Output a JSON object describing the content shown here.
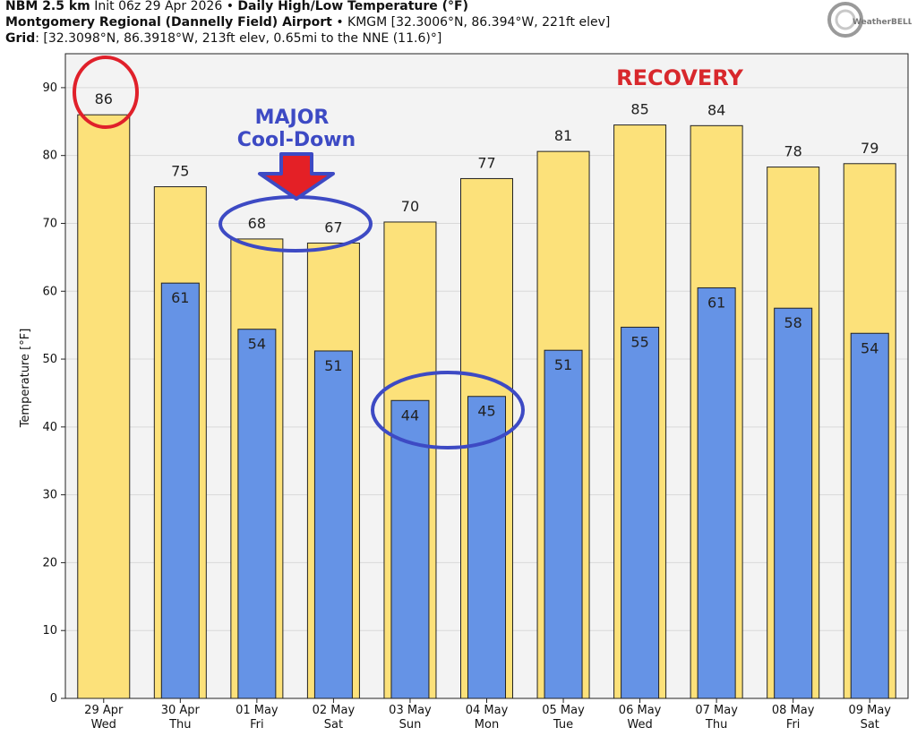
{
  "header": {
    "model": "NBM 2.5 km",
    "init": "Init 06z 29 Apr 2026",
    "bullet": "•",
    "product": "Daily High/Low Temperature (°F)",
    "station": "Montgomery Regional (Dannelly Field) Airport",
    "station_info": "KMGM [32.3006°N, 86.394°W, 221ft elev]",
    "grid_label": "Grid",
    "grid_info": ": [32.3098°N, 86.3918°W, 213ft elev, 0.65mi to the NNE (11.6)°]"
  },
  "logo": {
    "text": "WeatherBELL",
    "icon": "weatherbell-globe-logo"
  },
  "annotations": {
    "major": "MAJOR",
    "cooldown": "Cool-Down",
    "recovery": "RECOVERY",
    "arrow_icon": "red-down-arrow-icon",
    "circle_icon": "highlight-circle-icon"
  },
  "colors": {
    "high_bar": "#FCE17A",
    "low_bar": "#6593E6",
    "plot_bg": "#F3F3F3",
    "recovery_red": "#D8282C",
    "annotation_blue": "#3D4AC4",
    "circle_red": "#E0202A"
  },
  "chart_data": {
    "type": "bar",
    "title": "Daily High/Low Temperature (°F)",
    "ylabel": "Temperature [°F]",
    "xlabel": "",
    "ylim": [
      0,
      95
    ],
    "yticks": [
      0,
      10,
      20,
      30,
      40,
      50,
      60,
      70,
      80,
      90
    ],
    "grid": true,
    "categories": [
      [
        "29 Apr",
        "Wed"
      ],
      [
        "30 Apr",
        "Thu"
      ],
      [
        "01 May",
        "Fri"
      ],
      [
        "02 May",
        "Sat"
      ],
      [
        "03 May",
        "Sun"
      ],
      [
        "04 May",
        "Mon"
      ],
      [
        "05 May",
        "Tue"
      ],
      [
        "06 May",
        "Wed"
      ],
      [
        "07 May",
        "Thu"
      ],
      [
        "08 May",
        "Fri"
      ],
      [
        "09 May",
        "Sat"
      ]
    ],
    "series": [
      {
        "key": "high",
        "values": [
          86,
          75.4,
          67.7,
          67.1,
          70.2,
          76.6,
          80.6,
          84.5,
          84.4,
          78.3,
          78.8
        ],
        "labels": [
          "86",
          "75",
          "68",
          "67",
          "70",
          "77",
          "81",
          "85",
          "84",
          "78",
          "79"
        ]
      },
      {
        "key": "low",
        "values": [
          null,
          61.2,
          54.4,
          51.2,
          43.9,
          44.5,
          51.3,
          54.7,
          60.5,
          57.5,
          53.8
        ],
        "labels": [
          null,
          "61",
          "54",
          "51",
          "44",
          "45",
          "51",
          "55",
          "61",
          "58",
          "54"
        ]
      }
    ]
  }
}
